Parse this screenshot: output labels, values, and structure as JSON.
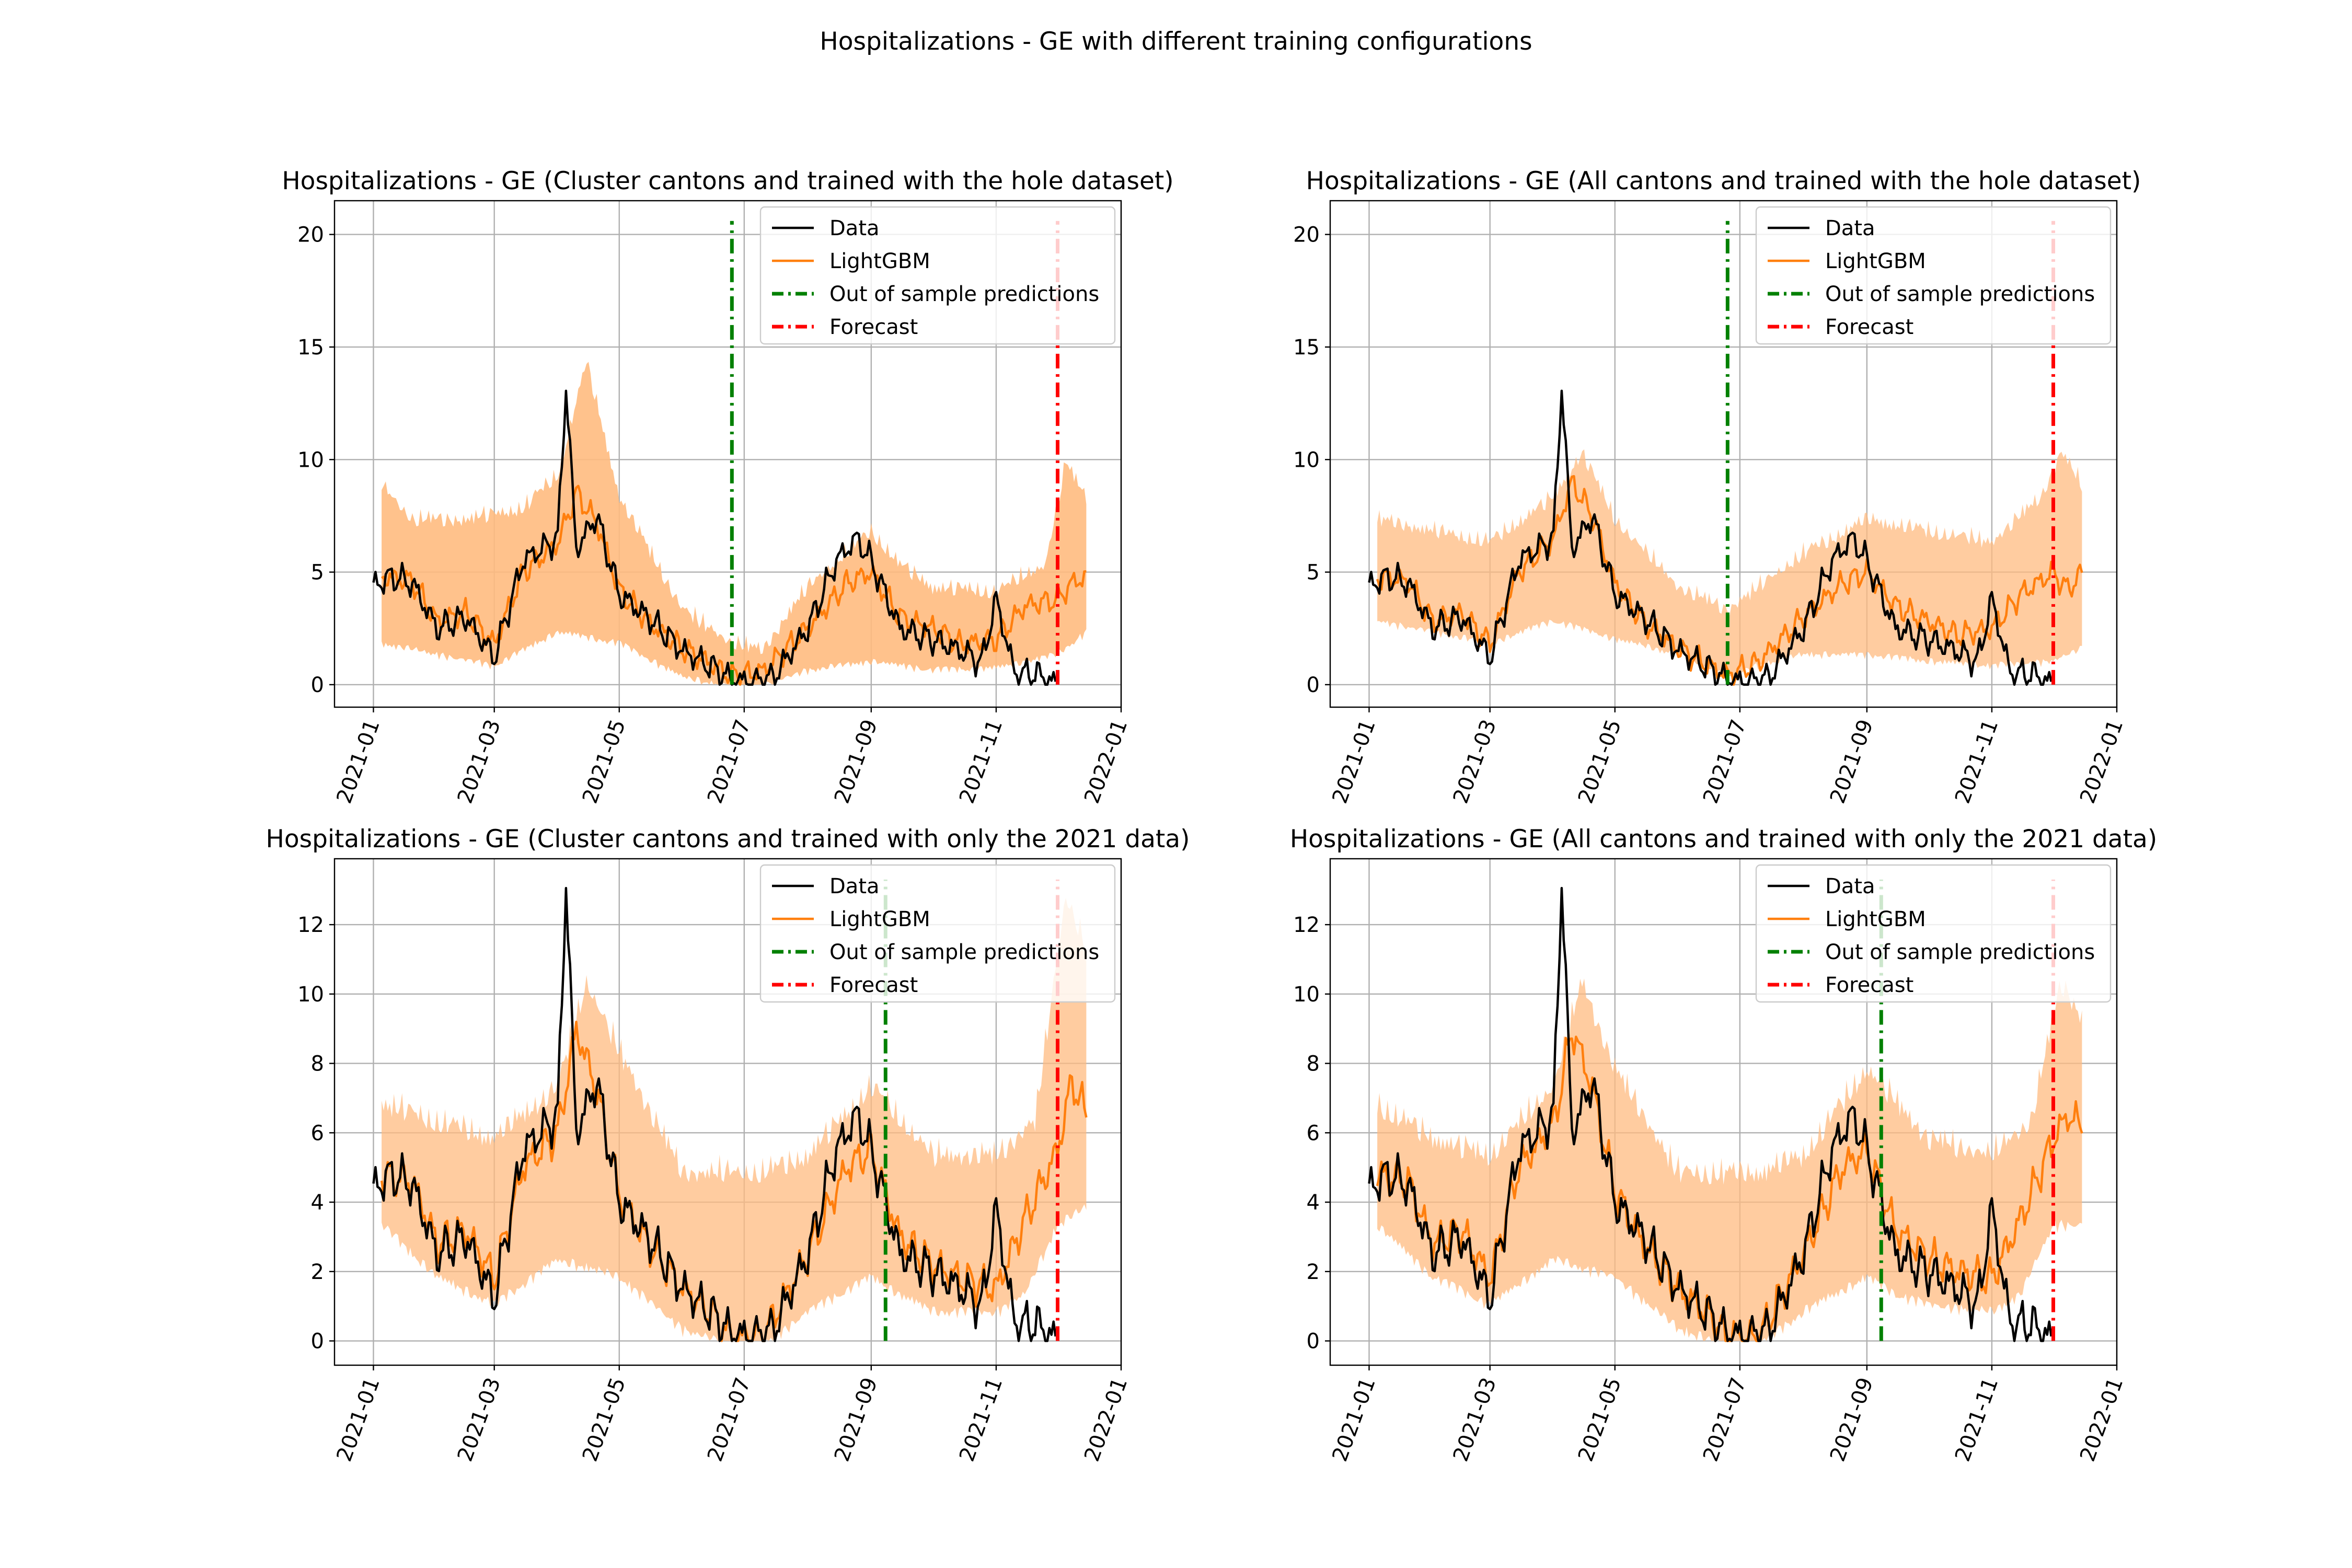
{
  "figure_title": "Hospitalizations - GE with different training configurations",
  "colors": {
    "data": "#000000",
    "model": "#ff7f0e",
    "band": "#ffbb80",
    "oos": "#008000",
    "forecast": "#ff0000",
    "grid": "#b0b0b0"
  },
  "chart_data": [
    {
      "type": "line",
      "title": "Hospitalizations - GE (Cluster cantons and trained with the hole dataset)",
      "xticks": [
        "2021-01",
        "2021-03",
        "2021-05",
        "2021-07",
        "2021-09",
        "2021-11",
        "2022-01"
      ],
      "yticks": [
        0,
        5,
        10,
        15,
        20
      ],
      "ylim": [
        -1,
        21.5
      ],
      "grid": true,
      "legend_position": "top-right",
      "legend": [
        "Data",
        "LightGBM",
        "Out of sample predictions",
        "Forecast"
      ],
      "out_of_sample_start": "2021-06-25",
      "forecast_start": "2021-12-01",
      "series": [
        {
          "name": "Data",
          "x": [
            "2021-01-01",
            "2021-01-10",
            "2021-01-20",
            "2021-02-01",
            "2021-02-15",
            "2021-03-01",
            "2021-03-15",
            "2021-04-01",
            "2021-04-05",
            "2021-04-10",
            "2021-04-20",
            "2021-05-01",
            "2021-05-15",
            "2021-06-01",
            "2021-06-15",
            "2021-06-25",
            "2021-07-05",
            "2021-07-15",
            "2021-08-01",
            "2021-08-15",
            "2021-08-25",
            "2021-09-01",
            "2021-09-15",
            "2021-10-01",
            "2021-10-15",
            "2021-10-25",
            "2021-11-01",
            "2021-11-10",
            "2021-11-20",
            "2021-11-30"
          ],
          "y": [
            4.4,
            4.8,
            4.5,
            2.5,
            3,
            1.2,
            5.5,
            6.5,
            13.3,
            6,
            7.5,
            4,
            3,
            1.5,
            0.8,
            0.2,
            0.1,
            0.3,
            2.5,
            5.5,
            6.5,
            5.5,
            2.5,
            2,
            1.5,
            1,
            3.8,
            0.5,
            0.5,
            0
          ]
        },
        {
          "name": "LightGBM",
          "x": [
            "2021-01-05",
            "2021-01-20",
            "2021-02-01",
            "2021-02-15",
            "2021-03-01",
            "2021-03-15",
            "2021-04-01",
            "2021-04-10",
            "2021-04-20",
            "2021-05-01",
            "2021-05-15",
            "2021-06-01",
            "2021-06-15",
            "2021-06-25",
            "2021-07-10",
            "2021-08-01",
            "2021-08-20",
            "2021-09-01",
            "2021-09-15",
            "2021-10-01",
            "2021-10-15",
            "2021-11-01",
            "2021-11-15",
            "2021-12-01",
            "2021-12-08",
            "2021-12-15"
          ],
          "y": [
            4.8,
            4.6,
            2.8,
            3.2,
            1.8,
            5,
            6.3,
            8.5,
            7.2,
            4.2,
            2.8,
            1.6,
            0.9,
            0.4,
            0.6,
            2.5,
            4.5,
            5,
            3,
            2.5,
            1.8,
            2,
            3.5,
            3.8,
            4.5,
            4.8
          ]
        },
        {
          "name": "band_lower",
          "x": [
            "2021-01-05",
            "2021-02-01",
            "2021-03-01",
            "2021-04-01",
            "2021-05-01",
            "2021-06-01",
            "2021-06-25",
            "2021-07-10",
            "2021-08-01",
            "2021-09-01",
            "2021-10-01",
            "2021-11-01",
            "2021-12-01",
            "2021-12-15"
          ],
          "y": [
            2,
            1.5,
            1,
            2.5,
            2,
            0.5,
            0,
            0.1,
            0.8,
            1.2,
            0.8,
            0.9,
            1.5,
            2.5
          ]
        },
        {
          "name": "band_upper",
          "x": [
            "2021-01-05",
            "2021-01-20",
            "2021-02-15",
            "2021-03-15",
            "2021-04-01",
            "2021-04-15",
            "2021-05-01",
            "2021-06-01",
            "2021-06-25",
            "2021-07-10",
            "2021-08-01",
            "2021-09-01",
            "2021-09-15",
            "2021-10-01",
            "2021-11-01",
            "2021-11-25",
            "2021-12-05",
            "2021-12-15"
          ],
          "y": [
            8.5,
            7,
            7,
            7.5,
            9,
            14,
            8,
            3,
            1.5,
            1.2,
            4,
            6.5,
            5,
            4,
            3.8,
            5,
            9.5,
            8
          ]
        }
      ]
    },
    {
      "type": "line",
      "title": "Hospitalizations - GE (All cantons and trained with the hole dataset)",
      "xticks": [
        "2021-01",
        "2021-03",
        "2021-05",
        "2021-07",
        "2021-09",
        "2021-11",
        "2022-01"
      ],
      "yticks": [
        0,
        5,
        10,
        15,
        20
      ],
      "ylim": [
        -1,
        21.5
      ],
      "grid": true,
      "legend_position": "top-right",
      "legend": [
        "Data",
        "LightGBM",
        "Out of sample predictions",
        "Forecast"
      ],
      "out_of_sample_start": "2021-06-25",
      "forecast_start": "2021-12-01",
      "series": [
        {
          "name": "Data",
          "x": [
            "2021-01-01",
            "2021-01-10",
            "2021-01-20",
            "2021-02-01",
            "2021-02-15",
            "2021-03-01",
            "2021-03-15",
            "2021-04-01",
            "2021-04-05",
            "2021-04-10",
            "2021-04-20",
            "2021-05-01",
            "2021-05-15",
            "2021-06-01",
            "2021-06-15",
            "2021-06-25",
            "2021-07-05",
            "2021-07-15",
            "2021-08-01",
            "2021-08-15",
            "2021-08-25",
            "2021-09-01",
            "2021-09-15",
            "2021-10-01",
            "2021-10-15",
            "2021-10-25",
            "2021-11-01",
            "2021-11-10",
            "2021-11-20",
            "2021-11-30"
          ],
          "y": [
            4.4,
            4.8,
            4.5,
            2.5,
            3,
            1.2,
            5.5,
            6.5,
            13.3,
            6,
            7.5,
            4,
            3,
            1.5,
            0.8,
            0.2,
            0.1,
            0.3,
            2.5,
            5.5,
            6.5,
            5.5,
            2.5,
            2,
            1.5,
            1,
            3.8,
            0.5,
            0.5,
            0
          ]
        },
        {
          "name": "LightGBM",
          "x": [
            "2021-01-05",
            "2021-01-20",
            "2021-02-01",
            "2021-02-15",
            "2021-03-01",
            "2021-03-15",
            "2021-04-01",
            "2021-04-10",
            "2021-04-20",
            "2021-05-01",
            "2021-05-15",
            "2021-06-01",
            "2021-06-15",
            "2021-06-25",
            "2021-07-10",
            "2021-08-01",
            "2021-08-20",
            "2021-09-01",
            "2021-09-15",
            "2021-10-01",
            "2021-10-15",
            "2021-11-01",
            "2021-11-15",
            "2021-12-01",
            "2021-12-08",
            "2021-12-15"
          ],
          "y": [
            4.8,
            4.6,
            2.8,
            3.2,
            1.8,
            5,
            6.5,
            9,
            7.5,
            4.5,
            2.8,
            1.6,
            0.9,
            0.4,
            1,
            3,
            4.5,
            5,
            3.5,
            2.8,
            2.2,
            2.5,
            4,
            5,
            4.2,
            5
          ]
        },
        {
          "name": "band_lower",
          "x": [
            "2021-01-05",
            "2021-02-01",
            "2021-03-01",
            "2021-04-01",
            "2021-05-01",
            "2021-06-01",
            "2021-06-25",
            "2021-07-10",
            "2021-08-01",
            "2021-09-01",
            "2021-10-01",
            "2021-11-01",
            "2021-12-01",
            "2021-12-15"
          ],
          "y": [
            3,
            2.5,
            2,
            3,
            2.2,
            1.5,
            0.5,
            1,
            1.5,
            1.5,
            1.2,
            1,
            1.2,
            1.8
          ]
        },
        {
          "name": "band_upper",
          "x": [
            "2021-01-05",
            "2021-02-01",
            "2021-03-01",
            "2021-04-01",
            "2021-04-15",
            "2021-05-01",
            "2021-06-01",
            "2021-06-25",
            "2021-07-10",
            "2021-08-01",
            "2021-09-01",
            "2021-10-01",
            "2021-11-01",
            "2021-11-25",
            "2021-12-05",
            "2021-12-15"
          ],
          "y": [
            7,
            6.5,
            6,
            8,
            10,
            7,
            4,
            3,
            4,
            5.5,
            7,
            6.5,
            6,
            8,
            10,
            8.5
          ]
        }
      ]
    },
    {
      "type": "line",
      "title": "Hospitalizations - GE (Cluster cantons and trained with only the 2021 data)",
      "xticks": [
        "2021-01",
        "2021-03",
        "2021-05",
        "2021-07",
        "2021-09",
        "2021-11",
        "2022-01"
      ],
      "yticks": [
        0,
        2,
        4,
        6,
        8,
        10,
        12
      ],
      "ylim": [
        -0.7,
        13.9
      ],
      "grid": true,
      "legend_position": "top-right",
      "legend": [
        "Data",
        "LightGBM",
        "Out of sample predictions",
        "Forecast"
      ],
      "out_of_sample_start": "2021-09-08",
      "forecast_start": "2021-12-01",
      "series": [
        {
          "name": "Data",
          "x": [
            "2021-01-01",
            "2021-01-10",
            "2021-01-20",
            "2021-02-01",
            "2021-02-15",
            "2021-03-01",
            "2021-03-15",
            "2021-04-01",
            "2021-04-05",
            "2021-04-10",
            "2021-04-20",
            "2021-05-01",
            "2021-05-15",
            "2021-06-01",
            "2021-06-15",
            "2021-06-25",
            "2021-07-05",
            "2021-07-15",
            "2021-08-01",
            "2021-08-15",
            "2021-08-25",
            "2021-09-01",
            "2021-09-15",
            "2021-10-01",
            "2021-10-15",
            "2021-10-25",
            "2021-11-01",
            "2021-11-10",
            "2021-11-20",
            "2021-11-30"
          ],
          "y": [
            4.4,
            4.8,
            4.5,
            2.5,
            3,
            1.2,
            5.5,
            6.5,
            13.3,
            6,
            7.5,
            4,
            3,
            1.5,
            0.8,
            0.2,
            0.1,
            0.3,
            2.5,
            5.5,
            6.5,
            5.5,
            2.5,
            2,
            1.5,
            1,
            3.8,
            0.5,
            0.5,
            0
          ]
        },
        {
          "name": "LightGBM",
          "x": [
            "2021-01-05",
            "2021-01-20",
            "2021-02-01",
            "2021-02-15",
            "2021-03-01",
            "2021-03-15",
            "2021-04-01",
            "2021-04-10",
            "2021-04-20",
            "2021-05-01",
            "2021-05-15",
            "2021-06-01",
            "2021-06-15",
            "2021-06-25",
            "2021-07-10",
            "2021-08-01",
            "2021-08-20",
            "2021-09-01",
            "2021-09-15",
            "2021-10-01",
            "2021-10-15",
            "2021-11-01",
            "2021-11-15",
            "2021-12-01",
            "2021-12-08",
            "2021-12-15"
          ],
          "y": [
            4.8,
            4.6,
            2.8,
            3.2,
            1.8,
            5,
            6,
            9,
            7.2,
            4.2,
            2.8,
            1.5,
            0.8,
            0.1,
            0.1,
            2.5,
            5,
            5.5,
            3,
            2.2,
            1.8,
            1.5,
            3.5,
            5.5,
            7.5,
            6.5
          ]
        },
        {
          "name": "band_lower",
          "x": [
            "2021-01-05",
            "2021-02-01",
            "2021-03-01",
            "2021-04-01",
            "2021-05-01",
            "2021-06-01",
            "2021-06-25",
            "2021-07-10",
            "2021-08-01",
            "2021-09-01",
            "2021-09-15",
            "2021-10-01",
            "2021-11-01",
            "2021-11-15",
            "2021-12-01",
            "2021-12-15"
          ],
          "y": [
            3.5,
            2,
            1.2,
            2.5,
            2,
            0.5,
            0,
            0,
            1,
            2,
            1.5,
            1,
            1,
            1.5,
            3.5,
            4
          ]
        },
        {
          "name": "band_upper",
          "x": [
            "2021-01-05",
            "2021-02-01",
            "2021-03-01",
            "2021-04-01",
            "2021-04-15",
            "2021-05-01",
            "2021-06-01",
            "2021-06-25",
            "2021-07-10",
            "2021-08-01",
            "2021-09-01",
            "2021-10-01",
            "2021-11-01",
            "2021-11-20",
            "2021-12-05",
            "2021-12-15"
          ],
          "y": [
            6.5,
            6,
            5.5,
            7,
            10,
            8,
            4.5,
            4.5,
            4.5,
            5,
            7,
            5,
            5,
            6,
            12.5,
            11
          ]
        }
      ]
    },
    {
      "type": "line",
      "title": "Hospitalizations - GE (All cantons and trained with only the 2021 data)",
      "xticks": [
        "2021-01",
        "2021-03",
        "2021-05",
        "2021-07",
        "2021-09",
        "2021-11",
        "2022-01"
      ],
      "yticks": [
        0,
        2,
        4,
        6,
        8,
        10,
        12
      ],
      "ylim": [
        -0.7,
        13.9
      ],
      "grid": true,
      "legend_position": "top-right",
      "legend": [
        "Data",
        "LightGBM",
        "Out of sample predictions",
        "Forecast"
      ],
      "out_of_sample_start": "2021-09-08",
      "forecast_start": "2021-12-01",
      "series": [
        {
          "name": "Data",
          "x": [
            "2021-01-01",
            "2021-01-10",
            "2021-01-20",
            "2021-02-01",
            "2021-02-15",
            "2021-03-01",
            "2021-03-15",
            "2021-04-01",
            "2021-04-05",
            "2021-04-10",
            "2021-04-20",
            "2021-05-01",
            "2021-05-15",
            "2021-06-01",
            "2021-06-15",
            "2021-06-25",
            "2021-07-05",
            "2021-07-15",
            "2021-08-01",
            "2021-08-15",
            "2021-08-25",
            "2021-09-01",
            "2021-09-15",
            "2021-10-01",
            "2021-10-15",
            "2021-10-25",
            "2021-11-01",
            "2021-11-10",
            "2021-11-20",
            "2021-11-30"
          ],
          "y": [
            4.4,
            4.8,
            4.5,
            2.5,
            3,
            1.2,
            5.5,
            6.5,
            13.3,
            6,
            7.5,
            4,
            3,
            1.5,
            0.8,
            0.2,
            0.1,
            0.3,
            2.5,
            5.5,
            6.5,
            5.5,
            2.5,
            2,
            1.5,
            1,
            3.8,
            0.5,
            0.5,
            0
          ]
        },
        {
          "name": "LightGBM",
          "x": [
            "2021-01-05",
            "2021-01-20",
            "2021-02-01",
            "2021-02-15",
            "2021-03-01",
            "2021-03-15",
            "2021-04-01",
            "2021-04-10",
            "2021-04-20",
            "2021-05-01",
            "2021-05-15",
            "2021-06-01",
            "2021-06-15",
            "2021-06-25",
            "2021-07-10",
            "2021-08-01",
            "2021-08-20",
            "2021-09-01",
            "2021-09-15",
            "2021-10-01",
            "2021-10-15",
            "2021-11-01",
            "2021-11-15",
            "2021-12-01",
            "2021-12-08",
            "2021-12-15"
          ],
          "y": [
            4.8,
            4.6,
            2.8,
            3.2,
            1.8,
            5,
            6.2,
            9,
            7.3,
            4.3,
            2.8,
            1.5,
            0.8,
            0.1,
            0.1,
            2.5,
            5,
            5.5,
            3.2,
            2.4,
            2,
            1.8,
            3.5,
            5.8,
            6.5,
            6.2
          ]
        },
        {
          "name": "band_lower",
          "x": [
            "2021-01-05",
            "2021-02-01",
            "2021-03-01",
            "2021-04-01",
            "2021-05-01",
            "2021-06-01",
            "2021-06-25",
            "2021-07-10",
            "2021-08-01",
            "2021-09-01",
            "2021-09-15",
            "2021-10-01",
            "2021-11-01",
            "2021-11-15",
            "2021-12-01",
            "2021-12-15"
          ],
          "y": [
            3.5,
            2,
            1.2,
            2.5,
            2,
            0.5,
            0,
            0,
            1,
            2,
            1.5,
            1.2,
            1,
            1.5,
            3.5,
            3.5
          ]
        },
        {
          "name": "band_upper",
          "x": [
            "2021-01-05",
            "2021-02-01",
            "2021-03-01",
            "2021-04-01",
            "2021-04-15",
            "2021-05-01",
            "2021-06-01",
            "2021-06-25",
            "2021-07-10",
            "2021-08-01",
            "2021-09-01",
            "2021-10-01",
            "2021-11-01",
            "2021-11-20",
            "2021-12-05",
            "2021-12-15"
          ],
          "y": [
            6.5,
            5.5,
            5,
            7,
            10,
            7.5,
            4.5,
            4.5,
            4.5,
            5,
            7.5,
            5.5,
            5,
            6,
            10,
            9
          ]
        }
      ]
    }
  ]
}
